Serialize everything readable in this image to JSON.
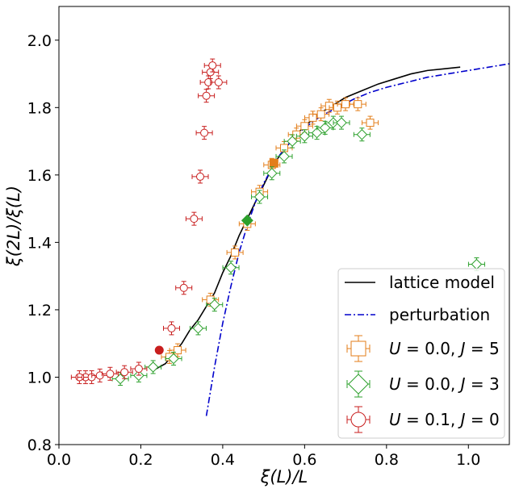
{
  "chart_data": {
    "type": "scatter",
    "xlabel": "ξ(L)/L",
    "ylabel": "ξ(2L)/ξ(L)",
    "xlim": [
      0.0,
      1.1
    ],
    "ylim": [
      0.8,
      2.1
    ],
    "xticks": [
      "0.0",
      "0.2",
      "0.4",
      "0.6",
      "0.8",
      "1.0"
    ],
    "xtick_values": [
      0.0,
      0.2,
      0.4,
      0.6,
      0.8,
      1.0
    ],
    "yticks": [
      "0.8",
      "1.0",
      "1.2",
      "1.4",
      "1.6",
      "1.8",
      "2.0"
    ],
    "ytick_values": [
      0.8,
      1.0,
      1.2,
      1.4,
      1.6,
      1.8,
      2.0
    ],
    "grid": false,
    "legend_position": "bottom-right",
    "series": [
      {
        "name": "lattice model",
        "kind": "line",
        "style": "solid",
        "color": "#000000",
        "x": [
          0.23,
          0.26,
          0.28,
          0.3,
          0.32,
          0.34,
          0.36,
          0.38,
          0.4,
          0.42,
          0.44,
          0.46,
          0.48,
          0.5,
          0.52,
          0.54,
          0.56,
          0.58,
          0.6,
          0.62,
          0.64,
          0.66,
          0.68,
          0.7,
          0.74,
          0.78,
          0.82,
          0.86,
          0.9,
          0.94,
          0.98
        ],
        "y": [
          1.02,
          1.04,
          1.07,
          1.1,
          1.14,
          1.17,
          1.21,
          1.25,
          1.31,
          1.36,
          1.42,
          1.47,
          1.52,
          1.57,
          1.62,
          1.66,
          1.69,
          1.72,
          1.745,
          1.765,
          1.785,
          1.8,
          1.815,
          1.83,
          1.85,
          1.87,
          1.885,
          1.9,
          1.91,
          1.915,
          1.92
        ]
      },
      {
        "name": "perturbation",
        "kind": "line",
        "style": "dashdot",
        "color": "#0000cc",
        "x": [
          0.36,
          0.38,
          0.4,
          0.42,
          0.44,
          0.46,
          0.48,
          0.5,
          0.52,
          0.54,
          0.56,
          0.58,
          0.6,
          0.64,
          0.68,
          0.72,
          0.76,
          0.8,
          0.85,
          0.9,
          0.95,
          1.0,
          1.05,
          1.1
        ],
        "y": [
          0.885,
          1.03,
          1.16,
          1.27,
          1.37,
          1.45,
          1.52,
          1.575,
          1.62,
          1.66,
          1.69,
          1.715,
          1.74,
          1.775,
          1.8,
          1.825,
          1.845,
          1.86,
          1.875,
          1.89,
          1.9,
          1.91,
          1.92,
          1.93
        ]
      },
      {
        "name": "U = 0.0, J = 5",
        "legend_parts": [
          "U",
          " = 0.0, ",
          "J",
          " = 5"
        ],
        "kind": "markers",
        "marker": "square",
        "color": "#e37e1a",
        "x": [
          0.27,
          0.29,
          0.37,
          0.43,
          0.46,
          0.49,
          0.52,
          0.55,
          0.58,
          0.6,
          0.62,
          0.64,
          0.66,
          0.68,
          0.7,
          0.73,
          0.76
        ],
        "y": [
          1.06,
          1.08,
          1.23,
          1.37,
          1.455,
          1.55,
          1.63,
          1.68,
          1.72,
          1.745,
          1.77,
          1.78,
          1.805,
          1.8,
          1.81,
          1.81,
          1.755
        ],
        "filled_x": [
          0.525
        ],
        "filled_y": [
          1.635
        ]
      },
      {
        "name": "U = 0.0, J = 3",
        "legend_parts": [
          "U",
          " = 0.0, ",
          "J",
          " = 3"
        ],
        "kind": "markers",
        "marker": "diamond",
        "color": "#2ca02c",
        "x": [
          0.15,
          0.195,
          0.23,
          0.28,
          0.34,
          0.38,
          0.42,
          0.49,
          0.52,
          0.55,
          0.57,
          0.6,
          0.63,
          0.65,
          0.67,
          0.69,
          0.74,
          1.02
        ],
        "y": [
          0.995,
          1.005,
          1.03,
          1.055,
          1.145,
          1.215,
          1.325,
          1.535,
          1.605,
          1.655,
          1.7,
          1.715,
          1.725,
          1.74,
          1.755,
          1.755,
          1.72,
          1.335
        ],
        "filled_x": [
          0.46
        ],
        "filled_y": [
          1.465
        ]
      },
      {
        "name": "U = 0.1, J = 0",
        "legend_parts": [
          "U",
          " = 0.1, ",
          "J",
          " = 0"
        ],
        "kind": "markers",
        "marker": "circle",
        "color": "#c81e1e",
        "x": [
          0.05,
          0.065,
          0.08,
          0.1,
          0.125,
          0.16,
          0.195,
          0.275,
          0.305,
          0.33,
          0.345,
          0.355,
          0.36,
          0.365,
          0.37,
          0.375,
          0.39
        ],
        "y": [
          1.0,
          1.0,
          1.0,
          1.005,
          1.01,
          1.015,
          1.025,
          1.145,
          1.265,
          1.47,
          1.595,
          1.725,
          1.835,
          1.875,
          1.905,
          1.925,
          1.875
        ],
        "filled_x": [
          0.245
        ],
        "filled_y": [
          1.08
        ]
      }
    ]
  }
}
